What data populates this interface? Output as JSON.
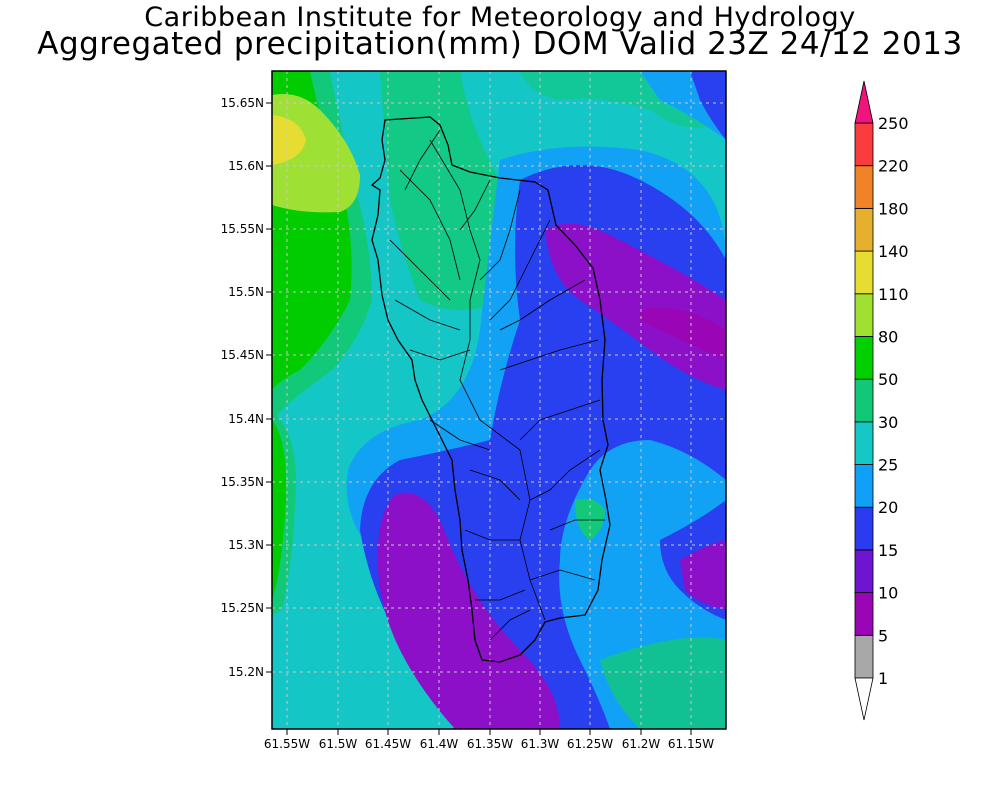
{
  "titles": {
    "line1": "Caribbean Institute for Meteorology and Hydrology",
    "line2": "Aggregated precipitation(mm) DOM Valid 23Z 24/12 2013"
  },
  "map": {
    "lon_ticks": [
      "61.55W",
      "61.5W",
      "61.45W",
      "61.4W",
      "61.35W",
      "61.3W",
      "61.25W",
      "61.2W",
      "61.15W"
    ],
    "lat_ticks": [
      "15.65N",
      "15.6N",
      "15.55N",
      "15.5N",
      "15.45N",
      "15.4N",
      "15.35N",
      "15.3N",
      "15.25N",
      "15.2N"
    ]
  },
  "legend": {
    "levels": [
      "1",
      "5",
      "10",
      "15",
      "20",
      "25",
      "30",
      "50",
      "80",
      "110",
      "140",
      "180",
      "220",
      "250"
    ],
    "colors": [
      "#ffffff",
      "#a8a8a8",
      "#9a06b5",
      "#6f14d0",
      "#2a3bf0",
      "#10a0f8",
      "#16c7c7",
      "#10c878",
      "#00d000",
      "#a0e032",
      "#e6dc32",
      "#e6af2d",
      "#f08228",
      "#fa3c3c",
      "#f0147d"
    ]
  },
  "palette": {
    "purple": "#8b10c8",
    "blue": "#2840f0",
    "light_blue": "#12a2f5",
    "cyan": "#14c6c6",
    "sea_green": "#12c97a",
    "green": "#00cc00",
    "yellow_green": "#9fe034",
    "yellow": "#e6dc32"
  }
}
